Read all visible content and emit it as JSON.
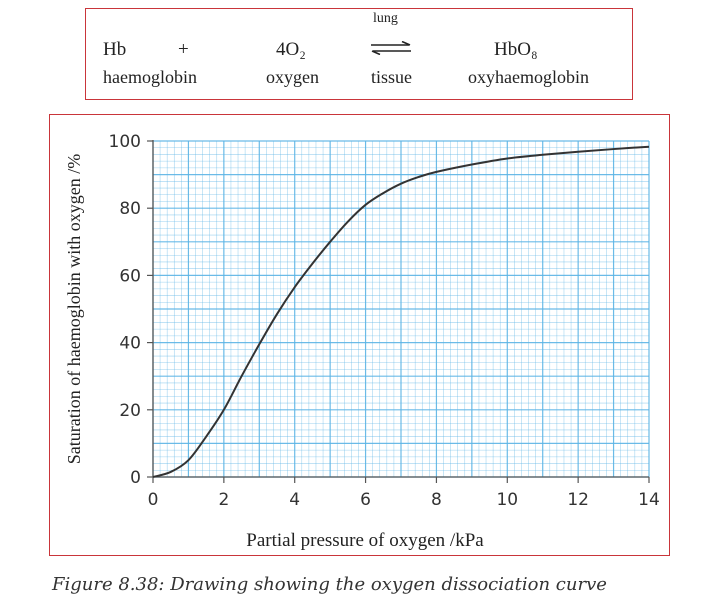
{
  "equation": {
    "reactant1_symbol": "Hb",
    "plus": "+",
    "reactant2_symbol": "4O₂",
    "product_symbol": "HbO₈",
    "reactant1_name": "haemoglobin",
    "reactant2_name": "oxygen",
    "product_name": "oxyhaemoglobin",
    "forward_condition": "lung",
    "reverse_condition": "tissue"
  },
  "chart_data": {
    "type": "line",
    "title": "",
    "xlabel": "Partial pressure of oxygen /kPa",
    "ylabel": "Saturation of haemoglobin with oxygen /%",
    "xlim": [
      0,
      14
    ],
    "ylim": [
      0,
      100
    ],
    "xticks": [
      "0",
      "2",
      "4",
      "6",
      "8",
      "10",
      "12",
      "14"
    ],
    "yticks": [
      "0",
      "20",
      "40",
      "60",
      "80",
      "100"
    ],
    "grid": true,
    "grid_color": "#5bb4e5",
    "line_color": "#333333",
    "series": [
      {
        "x": [
          0,
          0.5,
          1,
          1.5,
          2,
          2.5,
          3,
          3.5,
          4,
          4.5,
          5,
          5.5,
          6,
          6.5,
          7,
          7.5,
          8,
          9,
          10,
          11,
          12,
          13,
          14
        ],
        "values": [
          0,
          1.5,
          5,
          12,
          20,
          30,
          39.5,
          48.5,
          56.5,
          63.5,
          70,
          76,
          81,
          84.5,
          87.3,
          89.3,
          90.8,
          93,
          94.8,
          95.9,
          96.8,
          97.6,
          98.3
        ]
      }
    ]
  },
  "caption": "Figure 8.38: Drawing showing the oxygen dissociation curve"
}
